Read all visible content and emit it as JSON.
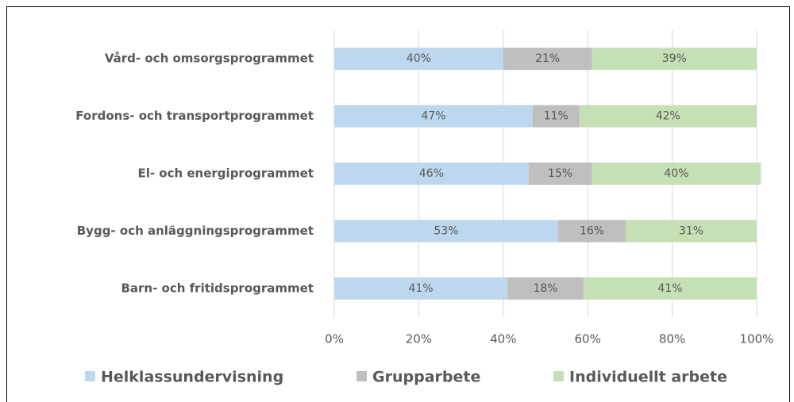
{
  "chart_data": {
    "type": "stacked_bar_horizontal",
    "categories": [
      "Vård- och omsorgsprogrammet",
      "Fordons- och transportprogrammet",
      "El- och energiprogrammet",
      "Bygg- och anläggningsprogrammet",
      "Barn- och fritidsprogrammet"
    ],
    "series": [
      {
        "name": "Helklassundervisning",
        "color": "#bdd7ee",
        "values": [
          40,
          47,
          46,
          53,
          41
        ],
        "value_labels": [
          "40%",
          "47%",
          "46%",
          "53%",
          "41%"
        ]
      },
      {
        "name": "Grupparbete",
        "color": "#bfbfbf",
        "values": [
          21,
          11,
          15,
          16,
          18
        ],
        "value_labels": [
          "21%",
          "11%",
          "15%",
          "16%",
          "18%"
        ]
      },
      {
        "name": "Individuellt arbete",
        "color": "#c5e0b4",
        "values": [
          39,
          42,
          40,
          31,
          41
        ],
        "value_labels": [
          "39%",
          "42%",
          "40%",
          "31%",
          "41%"
        ]
      }
    ],
    "xlim": [
      0,
      100
    ],
    "xticks": [
      {
        "value": 0,
        "label": "0%"
      },
      {
        "value": 20,
        "label": "20%"
      },
      {
        "value": 40,
        "label": "40%"
      },
      {
        "value": 60,
        "label": "60%"
      },
      {
        "value": 80,
        "label": "80%"
      },
      {
        "value": 100,
        "label": "100%"
      }
    ],
    "grid": true,
    "legend": "bottom"
  }
}
